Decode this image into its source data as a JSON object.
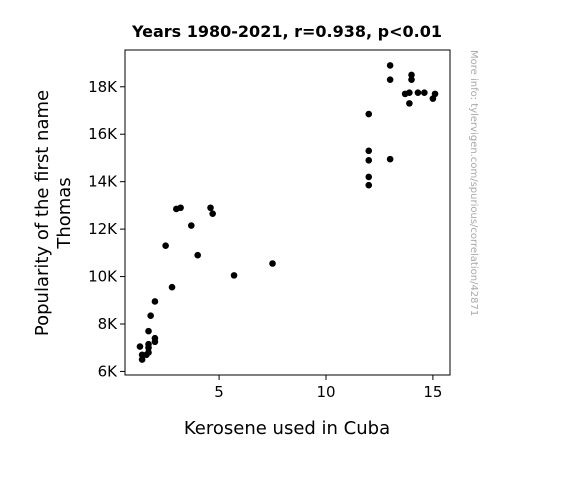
{
  "chart_data": {
    "type": "scatter",
    "title": "Years 1980-2021, r=0.938, p<0.01",
    "xlabel": "Kerosene used in Cuba",
    "ylabel_lines": [
      "Popularity of the first name",
      "Thomas"
    ],
    "watermark": "More info: tylervigen.com/spurious/correlation/42871",
    "xlim": [
      0.6,
      15.8
    ],
    "ylim": [
      5850,
      19550
    ],
    "x_ticks": [
      5,
      10,
      15
    ],
    "x_tick_labels": [
      "5",
      "10",
      "15"
    ],
    "y_ticks": [
      6000,
      8000,
      10000,
      12000,
      14000,
      16000,
      18000
    ],
    "y_tick_labels": [
      "6K",
      "8K",
      "10K",
      "12K",
      "14K",
      "16K",
      "18K"
    ],
    "marker_color": "#000000",
    "grid": false,
    "points": [
      {
        "x": 1.3,
        "y": 7050
      },
      {
        "x": 1.4,
        "y": 6500
      },
      {
        "x": 1.4,
        "y": 6700
      },
      {
        "x": 1.6,
        "y": 6700
      },
      {
        "x": 1.7,
        "y": 6800
      },
      {
        "x": 1.7,
        "y": 7000
      },
      {
        "x": 1.7,
        "y": 7150
      },
      {
        "x": 1.7,
        "y": 7700
      },
      {
        "x": 1.8,
        "y": 8350
      },
      {
        "x": 2.0,
        "y": 7250
      },
      {
        "x": 2.0,
        "y": 7400
      },
      {
        "x": 2.0,
        "y": 8950
      },
      {
        "x": 2.5,
        "y": 11300
      },
      {
        "x": 2.8,
        "y": 9550
      },
      {
        "x": 3.0,
        "y": 12850
      },
      {
        "x": 3.2,
        "y": 12900
      },
      {
        "x": 3.7,
        "y": 12150
      },
      {
        "x": 4.0,
        "y": 10900
      },
      {
        "x": 4.6,
        "y": 12900
      },
      {
        "x": 4.7,
        "y": 12650
      },
      {
        "x": 5.7,
        "y": 10050
      },
      {
        "x": 7.5,
        "y": 10550
      },
      {
        "x": 12.0,
        "y": 16850
      },
      {
        "x": 12.0,
        "y": 15300
      },
      {
        "x": 12.0,
        "y": 14900
      },
      {
        "x": 12.0,
        "y": 14200
      },
      {
        "x": 12.0,
        "y": 13850
      },
      {
        "x": 13.0,
        "y": 18900
      },
      {
        "x": 13.0,
        "y": 18300
      },
      {
        "x": 13.0,
        "y": 14950
      },
      {
        "x": 13.7,
        "y": 17700
      },
      {
        "x": 13.9,
        "y": 17750
      },
      {
        "x": 13.9,
        "y": 17300
      },
      {
        "x": 14.0,
        "y": 18500
      },
      {
        "x": 14.0,
        "y": 18300
      },
      {
        "x": 14.3,
        "y": 17750
      },
      {
        "x": 14.6,
        "y": 17750
      },
      {
        "x": 15.0,
        "y": 17500
      },
      {
        "x": 15.1,
        "y": 17700
      }
    ]
  }
}
